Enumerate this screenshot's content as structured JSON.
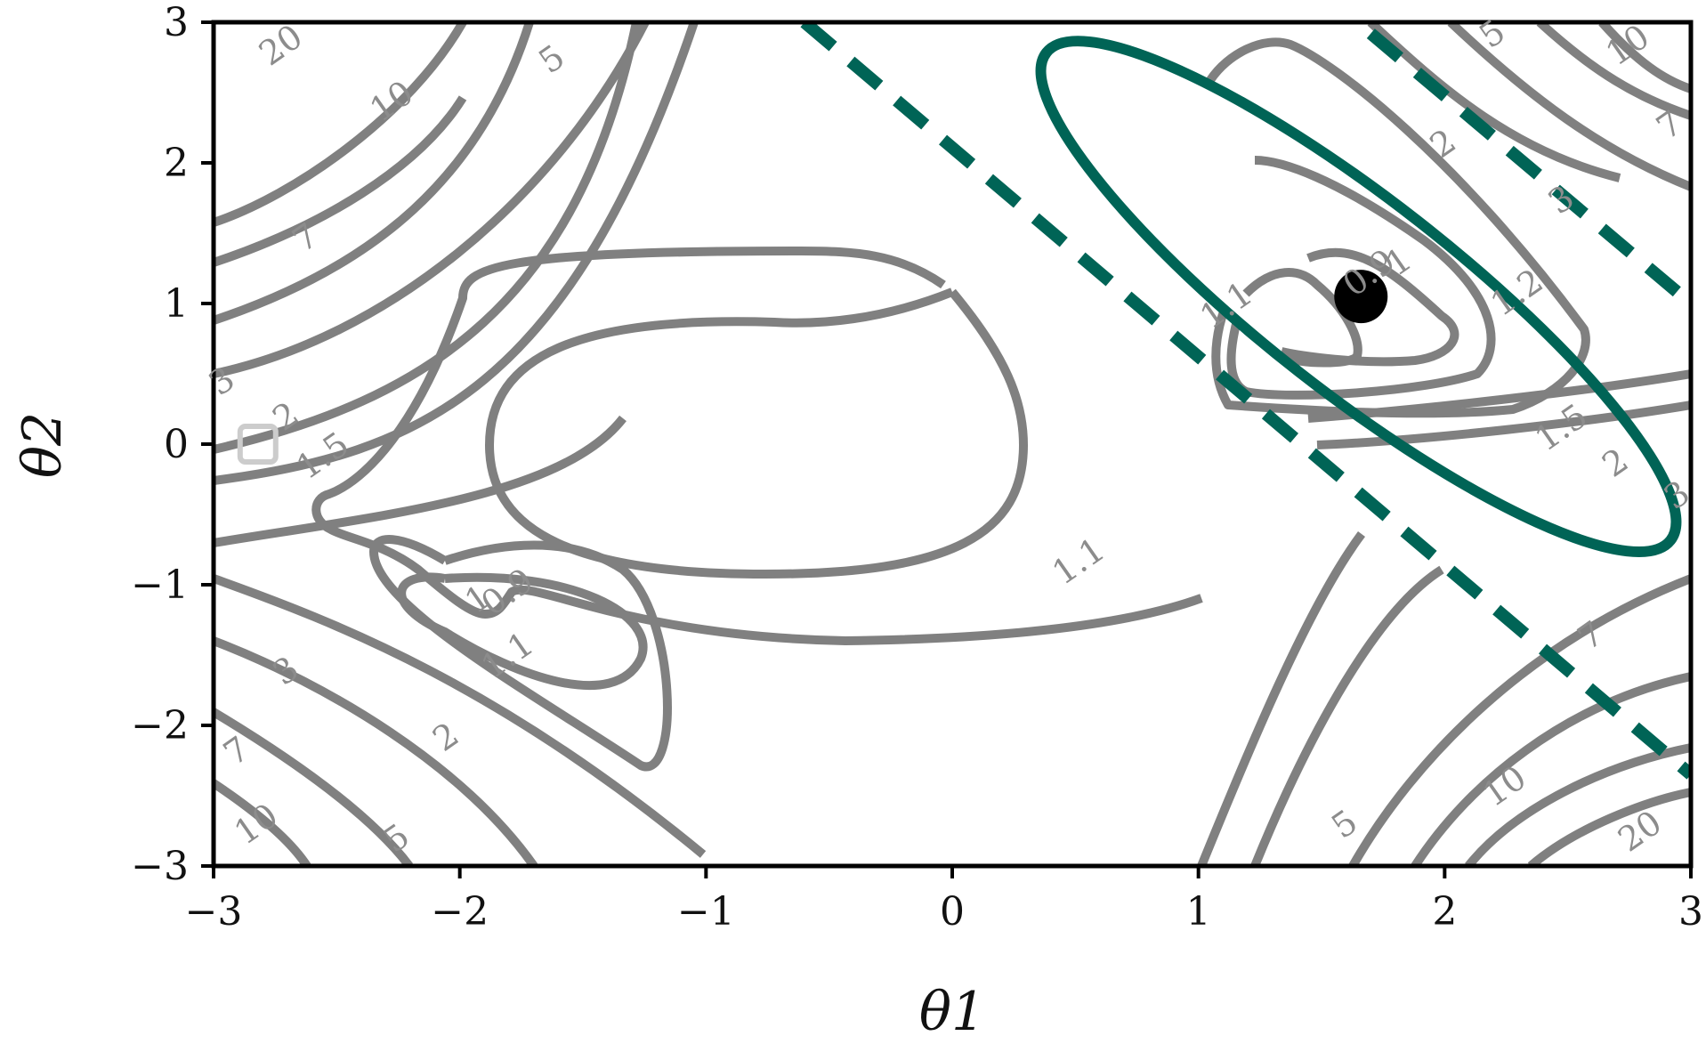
{
  "chart_data": {
    "type": "contour",
    "xlabel": "θ1",
    "ylabel": "θ2",
    "xlim": [
      -3,
      3
    ],
    "ylim": [
      -3,
      3
    ],
    "x_ticks": [
      -3,
      -2,
      -1,
      0,
      1,
      2,
      3
    ],
    "y_ticks": [
      -3,
      -2,
      -1,
      0,
      1,
      2,
      3
    ],
    "x_tick_labels": [
      "−3",
      "−2",
      "−1",
      "0",
      "1",
      "2",
      "3"
    ],
    "y_tick_labels": [
      "−3",
      "−2",
      "−1",
      "0",
      "1",
      "2",
      "3"
    ],
    "grid": false,
    "contour_levels": [
      "0.9",
      "1.1",
      "1.5",
      "2",
      "3",
      "5",
      "7",
      "10",
      "20"
    ],
    "contour_labels": [
      {
        "text": "20",
        "x": -2.72,
        "y": 2.82
      },
      {
        "text": "10",
        "x": -2.27,
        "y": 2.42
      },
      {
        "text": "5",
        "x": -1.62,
        "y": 2.72
      },
      {
        "text": "7",
        "x": -2.62,
        "y": 1.45
      },
      {
        "text": "3",
        "x": -2.96,
        "y": 0.43
      },
      {
        "text": "2",
        "x": -2.7,
        "y": 0.18
      },
      {
        "text": "1.5",
        "x": -2.55,
        "y": -0.1
      },
      {
        "text": "1.1",
        "x": 0.52,
        "y": -0.85
      },
      {
        "text": "0.9",
        "x": -1.8,
        "y": -1.07
      },
      {
        "text": "1",
        "x": -1.92,
        "y": -1.12
      },
      {
        "text": "1.1",
        "x": -1.8,
        "y": -1.52
      },
      {
        "text": "3",
        "x": -2.7,
        "y": -1.63
      },
      {
        "text": "2",
        "x": -2.05,
        "y": -2.1
      },
      {
        "text": "7",
        "x": -2.9,
        "y": -2.2
      },
      {
        "text": "10",
        "x": -2.82,
        "y": -2.72
      },
      {
        "text": "5",
        "x": -2.25,
        "y": -2.82
      },
      {
        "text": "1.1",
        "x": 1.12,
        "y": 0.97
      },
      {
        "text": "0.9",
        "x": 1.7,
        "y": 1.2
      },
      {
        "text": "1",
        "x": 1.82,
        "y": 1.28
      },
      {
        "text": "1.2",
        "x": 2.3,
        "y": 1.06
      },
      {
        "text": "1.5",
        "x": 2.48,
        "y": 0.1
      },
      {
        "text": "2",
        "x": 2.7,
        "y": -0.15
      },
      {
        "text": "3",
        "x": 2.95,
        "y": -0.38
      },
      {
        "text": "2",
        "x": 2.0,
        "y": 2.12
      },
      {
        "text": "3",
        "x": 2.48,
        "y": 1.72
      },
      {
        "text": "5",
        "x": 2.2,
        "y": 2.9
      },
      {
        "text": "10",
        "x": 2.75,
        "y": 2.82
      },
      {
        "text": "7",
        "x": 2.92,
        "y": 2.25
      },
      {
        "text": "7",
        "x": 2.6,
        "y": -1.38
      },
      {
        "text": "10",
        "x": 2.25,
        "y": -2.45
      },
      {
        "text": "5",
        "x": 1.6,
        "y": -2.72
      },
      {
        "text": "20",
        "x": 2.8,
        "y": -2.77
      }
    ],
    "series": [
      {
        "kind": "point",
        "x": 1.66,
        "y": 1.05,
        "color": "#000000"
      },
      {
        "kind": "square-marker",
        "x": -2.82,
        "y": 0.0,
        "color": "#cccccc"
      },
      {
        "kind": "ellipse",
        "center": [
          1.65,
          1.05
        ],
        "color": "#006456"
      },
      {
        "kind": "dashed-line",
        "x": [
          -0.6,
          3.0
        ],
        "y": [
          3.0,
          -2.35
        ],
        "color": "#006456"
      },
      {
        "kind": "dashed-line",
        "x": [
          1.7,
          3.0
        ],
        "y": [
          2.92,
          1.0
        ],
        "color": "#006456"
      }
    ],
    "colors": {
      "contour": "#808080",
      "accent": "#006456",
      "point": "#000000"
    }
  }
}
